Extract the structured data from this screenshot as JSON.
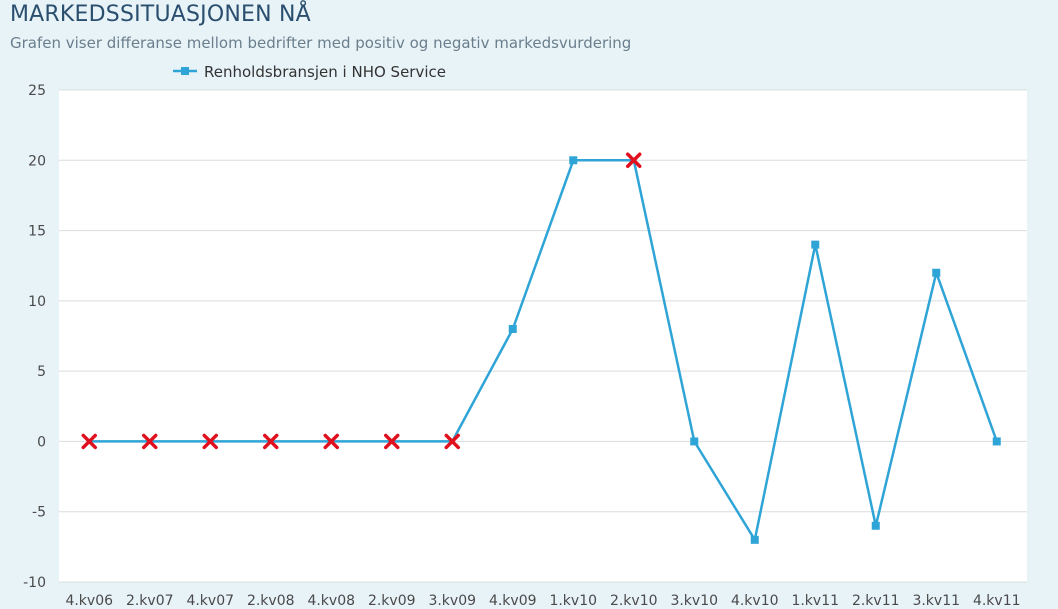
{
  "title": "MARKEDSSITUASJONEN NÅ",
  "subtitle": "Grafen viser differanse mellom bedrifter med positiv og negativ markedsvurdering",
  "colors": {
    "series": "#2fa4d6",
    "missing_marker": "#e0101e",
    "grid": "#d8dde0",
    "axis_text": "#4a4a4a",
    "plot_bg": "#ffffff"
  },
  "legend": {
    "position": "top-left",
    "marker_icon": "square-line-icon"
  },
  "chart_data": {
    "type": "line",
    "title": "MARKEDSSITUASJONEN NÅ",
    "subtitle": "Grafen viser differanse mellom bedrifter med positiv og negativ markedsvurdering",
    "xlabel": "",
    "ylabel": "",
    "ylim": [
      -10,
      25
    ],
    "yticks": [
      25,
      20,
      15,
      10,
      5,
      0,
      -5,
      -10
    ],
    "grid": true,
    "categories": [
      "4.kv06",
      "2.kv07",
      "4.kv07",
      "2.kv08",
      "4.kv08",
      "2.kv09",
      "3.kv09",
      "4.kv09",
      "1.kv10",
      "2.kv10",
      "3.kv10",
      "4.kv10",
      "1.kv11",
      "2.kv11",
      "3.kv11",
      "4.kv11"
    ],
    "series": [
      {
        "name": "Renholdsbransjen i NHO Service",
        "values": [
          0,
          0,
          0,
          0,
          0,
          0,
          0,
          8,
          20,
          20,
          0,
          -7,
          14,
          -6,
          12,
          0
        ],
        "marker_style": [
          "x",
          "x",
          "x",
          "x",
          "x",
          "x",
          "x",
          "square",
          "square",
          "x",
          "square",
          "square",
          "square",
          "square",
          "square",
          "square"
        ]
      }
    ]
  }
}
